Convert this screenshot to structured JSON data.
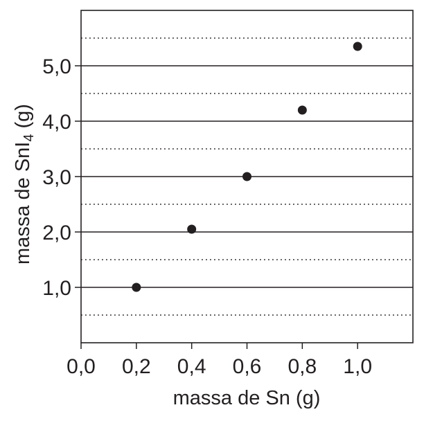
{
  "chart_data": {
    "type": "scatter",
    "xlabel": "massa de Sn (g)",
    "ylabel": "massa de SnI",
    "ylabel_subscript": "4",
    "ylabel_suffix": " (g)",
    "xlim": [
      0,
      1.2
    ],
    "ylim": [
      0,
      6
    ],
    "x_ticks": [
      0,
      0.2,
      0.4,
      0.6,
      0.8,
      1.0
    ],
    "x_tick_labels": [
      "0,0",
      "0,2",
      "0,4",
      "0,6",
      "0,8",
      "1,0"
    ],
    "y_ticks": [
      1,
      2,
      3,
      4,
      5
    ],
    "y_tick_labels": [
      "1,0",
      "2,0",
      "3,0",
      "4,0",
      "5,0"
    ],
    "major_gridlines": [
      1,
      2,
      3,
      4,
      5
    ],
    "minor_gridlines": [
      0.5,
      1.5,
      2.5,
      3.5,
      4.5,
      5.5
    ],
    "grid": "horizontal",
    "point_color": "#231f20",
    "line_color": "#231f20",
    "points": [
      {
        "x": 0.2,
        "y": 1.0
      },
      {
        "x": 0.4,
        "y": 2.05
      },
      {
        "x": 0.6,
        "y": 3.0
      },
      {
        "x": 0.8,
        "y": 4.2
      },
      {
        "x": 1.0,
        "y": 5.35
      }
    ]
  }
}
